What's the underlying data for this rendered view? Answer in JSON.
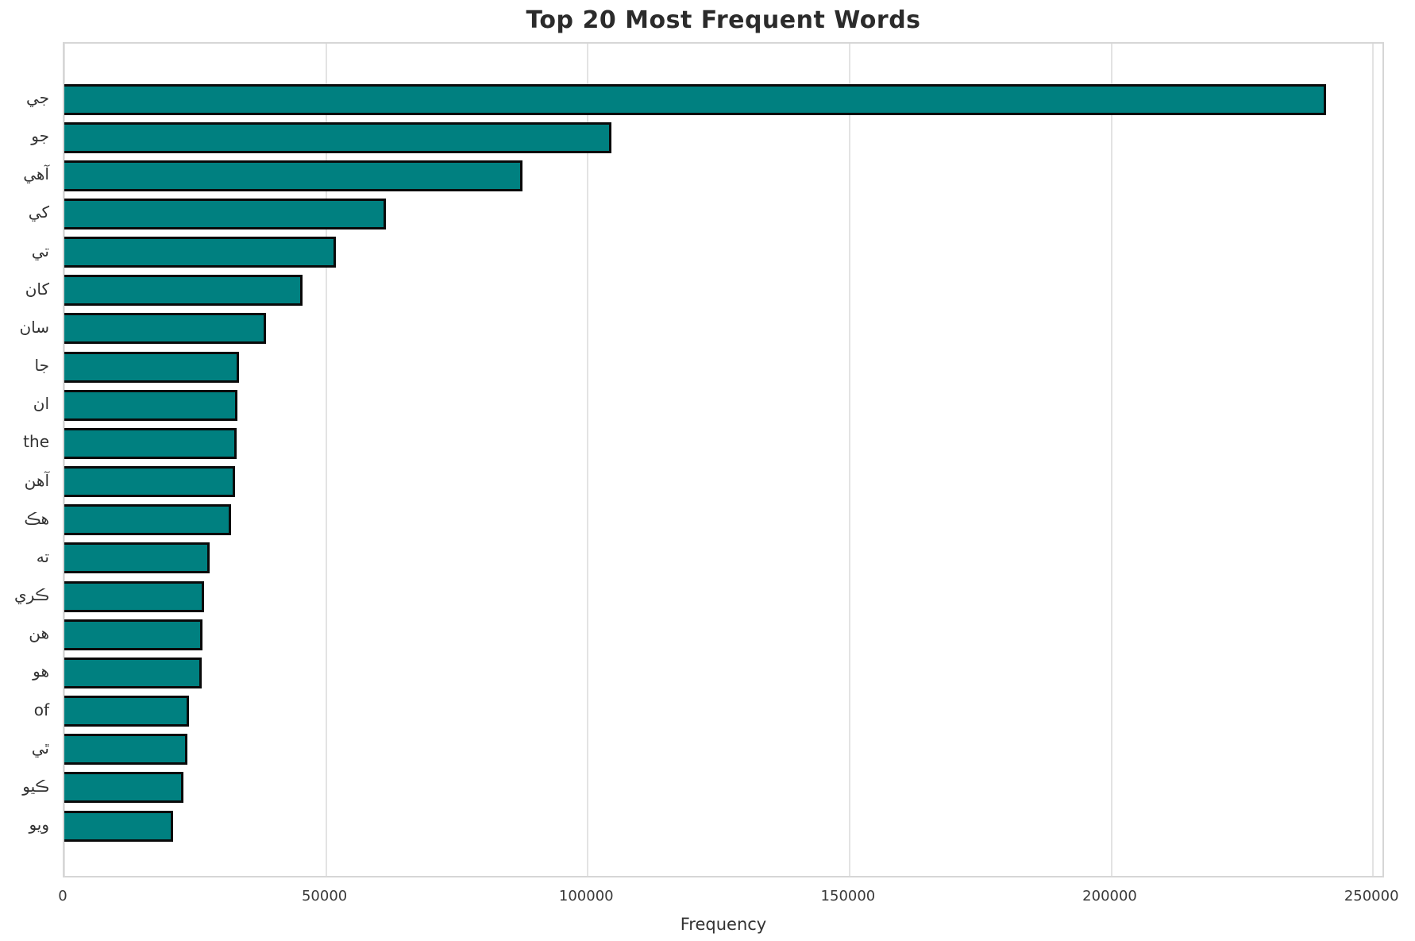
{
  "title": "Top 20 Most Frequent Words",
  "colors": {
    "bar_fill": "#008080",
    "bar_edge": "#0a0a0a",
    "grid": "#e3e3e3",
    "spine": "#d6d6d6",
    "title_text": "#2b2b2b",
    "tick_text": "#3a3a3a"
  },
  "chart_data": {
    "type": "bar",
    "orientation": "horizontal",
    "title": "Top 20 Most Frequent Words",
    "xlabel": "Frequency",
    "ylabel": "",
    "categories": [
      "جي",
      "جو",
      "آهي",
      "کي",
      "تي",
      "کان",
      "سان",
      "جا",
      "ان",
      "the",
      "آهن",
      "هڪ",
      "ته",
      "ڪري",
      "هن",
      "هو",
      "of",
      "ٿي",
      "ڪيو",
      "ويو"
    ],
    "values": [
      241000,
      104500,
      87500,
      61400,
      51900,
      45500,
      38500,
      33400,
      33100,
      32900,
      32600,
      31900,
      27800,
      26700,
      26400,
      26200,
      23800,
      23500,
      22800,
      20800
    ],
    "xlim": [
      0,
      252400
    ],
    "xticks": [
      0,
      50000,
      100000,
      150000,
      200000,
      250000
    ],
    "xtick_labels": [
      "0",
      "50000",
      "100000",
      "150000",
      "200000",
      "250000"
    ],
    "grid": "vertical",
    "legend": null,
    "bar_color": "#008080",
    "bar_edge_color": "#0a0a0a"
  }
}
